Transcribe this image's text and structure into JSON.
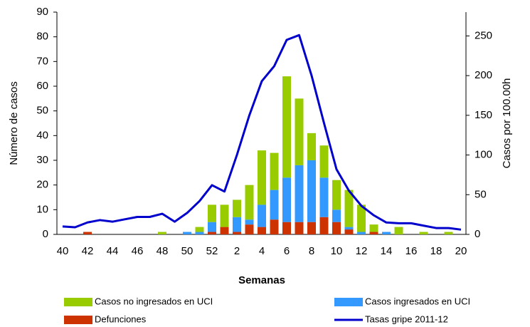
{
  "chart_data": {
    "type": "bar",
    "x_label": "Semanas",
    "y_label": "Número de casos",
    "y2_label": "Casos por 100.00h",
    "categories": [
      "40",
      null,
      "42",
      null,
      "44",
      null,
      "46",
      null,
      "48",
      null,
      "50",
      null,
      "52",
      null,
      "2",
      null,
      "4",
      null,
      "6",
      null,
      "8",
      null,
      "10",
      null,
      "12",
      null,
      "14",
      null,
      "16",
      null,
      "18",
      null,
      "20"
    ],
    "ylim": [
      0,
      90
    ],
    "yticks": [
      0,
      10,
      20,
      30,
      40,
      50,
      60,
      70,
      80,
      90
    ],
    "y2lim": [
      0,
      280
    ],
    "y2ticks": [
      0,
      50,
      100,
      150,
      200,
      250
    ],
    "stacked": true,
    "series": [
      {
        "name": "Defunciones",
        "color": "#cc3300",
        "type": "bar",
        "values": [
          0,
          0,
          1,
          0,
          0,
          0,
          0,
          0,
          0,
          0,
          0,
          0,
          1,
          3,
          1,
          4,
          3,
          6,
          5,
          5,
          5,
          7,
          5,
          2,
          0,
          1,
          0,
          0,
          0,
          0,
          0,
          0,
          0
        ]
      },
      {
        "name": "Casos ingresados en UCI",
        "color": "#3399ff",
        "type": "bar",
        "values": [
          0,
          0,
          0,
          0,
          0,
          0,
          0,
          0,
          0,
          0,
          1,
          1,
          4,
          0,
          6,
          2,
          9,
          12,
          18,
          23,
          25,
          16,
          5,
          1,
          1,
          0,
          1,
          0,
          0,
          0,
          0,
          0,
          0
        ]
      },
      {
        "name": "Casos no ingresados en UCI",
        "color": "#99cc00",
        "type": "bar",
        "values": [
          0,
          0,
          0,
          0,
          0,
          0,
          0,
          0,
          1,
          0,
          0,
          2,
          7,
          9,
          7,
          14,
          22,
          15,
          41,
          27,
          11,
          13,
          12,
          15,
          11,
          3,
          0,
          3,
          0,
          1,
          0,
          1,
          0
        ]
      },
      {
        "name": "Tasas gripe 2011-12",
        "color": "#0000cc",
        "type": "line",
        "axis": "y2",
        "values": [
          10,
          9,
          15,
          18,
          16,
          19,
          22,
          22,
          26,
          16,
          27,
          42,
          62,
          54,
          100,
          150,
          193,
          212,
          245,
          251,
          200,
          140,
          82,
          55,
          36,
          24,
          15,
          14,
          14,
          11,
          8,
          8,
          6
        ]
      }
    ]
  }
}
